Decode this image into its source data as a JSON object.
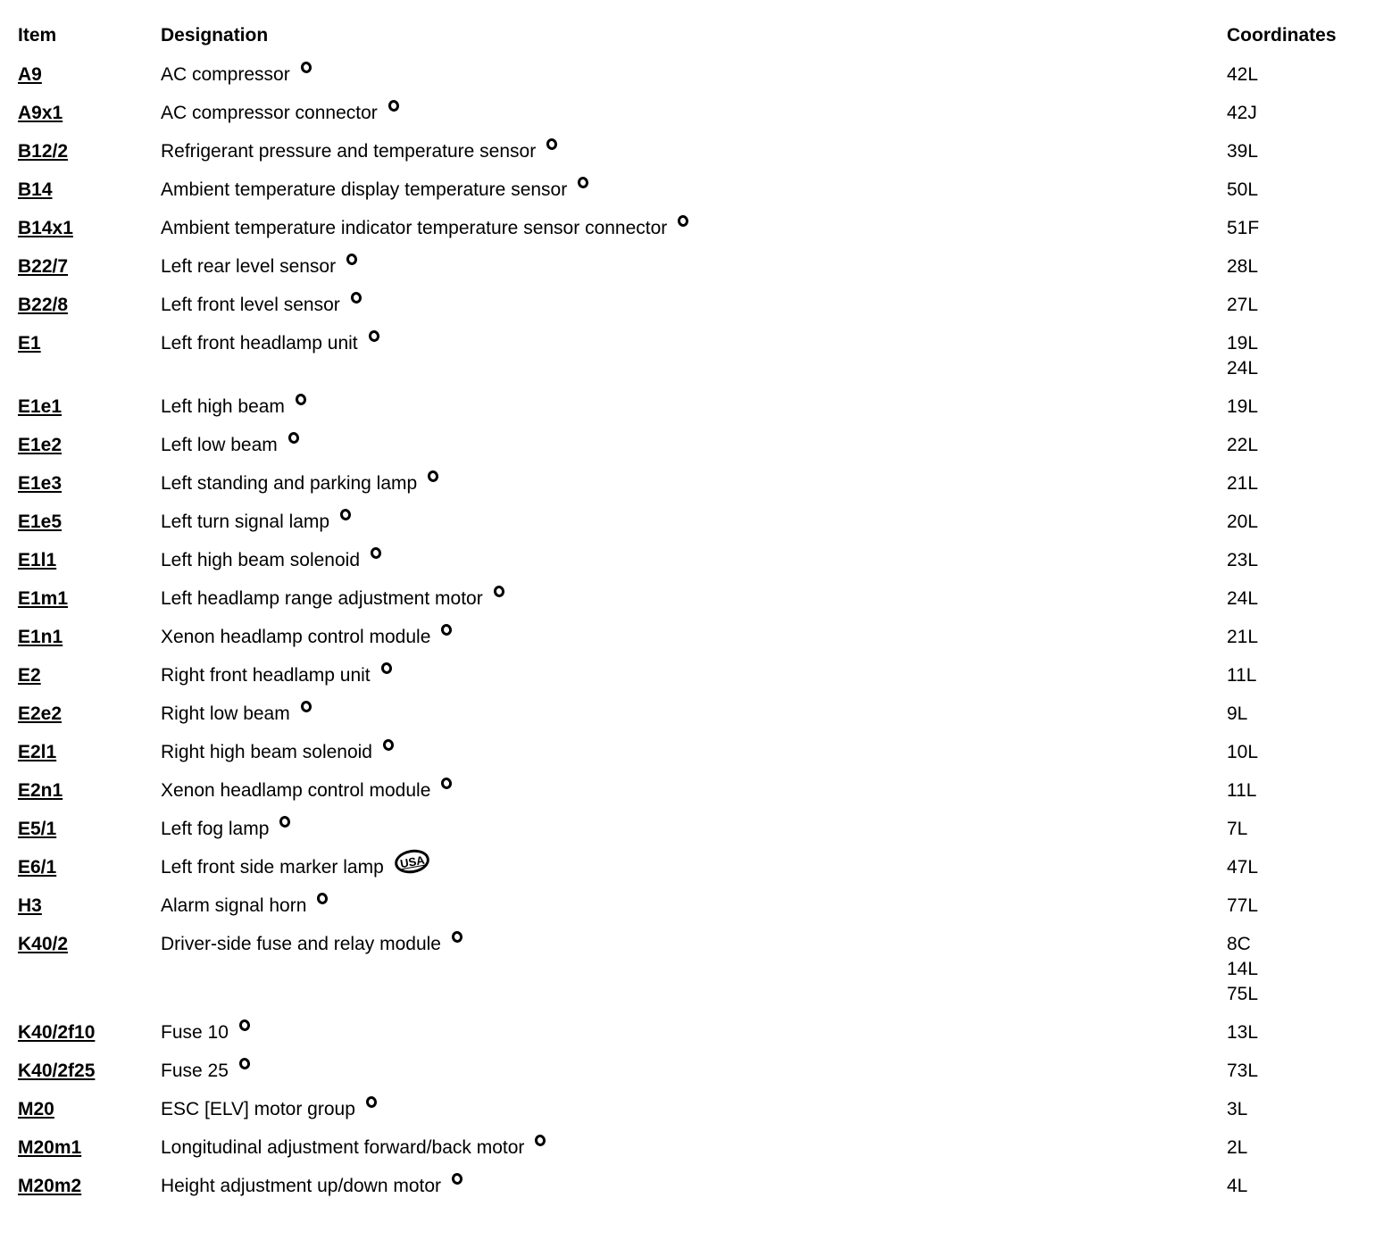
{
  "colors": {
    "text": "#000000",
    "background": "#ffffff"
  },
  "table": {
    "headers": {
      "item": "Item",
      "designation": "Designation",
      "coordinates": "Coordinates"
    },
    "rows": [
      {
        "item": "A9",
        "designation": "AC compressor",
        "coordinates": [
          "42L"
        ]
      },
      {
        "item": "A9x1",
        "designation": "AC compressor connector",
        "coordinates": [
          "42J"
        ]
      },
      {
        "item": "B12/2",
        "designation": "Refrigerant pressure and temperature sensor",
        "coordinates": [
          "39L"
        ]
      },
      {
        "item": "B14",
        "designation": "Ambient temperature display temperature sensor",
        "coordinates": [
          "50L"
        ]
      },
      {
        "item": "B14x1",
        "designation": "Ambient temperature indicator temperature sensor connector",
        "coordinates": [
          "51F"
        ]
      },
      {
        "item": "B22/7",
        "designation": "Left rear level sensor",
        "coordinates": [
          "28L"
        ]
      },
      {
        "item": "B22/8",
        "designation": "Left front level sensor",
        "coordinates": [
          "27L"
        ]
      },
      {
        "item": "E1",
        "designation": "Left front headlamp unit",
        "coordinates": [
          "19L",
          "24L"
        ]
      },
      {
        "item": "E1e1",
        "designation": "Left high beam",
        "coordinates": [
          "19L"
        ]
      },
      {
        "item": "E1e2",
        "designation": "Left low beam",
        "coordinates": [
          "22L"
        ]
      },
      {
        "item": "E1e3",
        "designation": "Left standing and parking lamp",
        "coordinates": [
          "21L"
        ]
      },
      {
        "item": "E1e5",
        "designation": "Left turn signal lamp",
        "coordinates": [
          "20L"
        ]
      },
      {
        "item": "E1l1",
        "designation": "Left high beam solenoid",
        "coordinates": [
          "23L"
        ]
      },
      {
        "item": "E1m1",
        "designation": "Left headlamp range adjustment motor",
        "coordinates": [
          "24L"
        ]
      },
      {
        "item": "E1n1",
        "designation": "Xenon headlamp control module",
        "coordinates": [
          "21L"
        ]
      },
      {
        "item": "E2",
        "designation": "Right front headlamp unit",
        "coordinates": [
          "11L"
        ]
      },
      {
        "item": "E2e2",
        "designation": "Right low beam",
        "coordinates": [
          "9L"
        ]
      },
      {
        "item": "E2l1",
        "designation": "Right high beam solenoid",
        "coordinates": [
          "10L"
        ]
      },
      {
        "item": "E2n1",
        "designation": "Xenon headlamp control module",
        "coordinates": [
          "11L"
        ]
      },
      {
        "item": "E5/1",
        "designation": "Left fog lamp",
        "coordinates": [
          "7L"
        ]
      },
      {
        "item": "E6/1",
        "designation": "Left front side marker lamp",
        "icon": {
          "name": "usa-marker-icon",
          "label": "USA"
        },
        "coordinates": [
          "47L"
        ]
      },
      {
        "item": "H3",
        "designation": "Alarm signal horn",
        "coordinates": [
          "77L"
        ]
      },
      {
        "item": "K40/2",
        "designation": "Driver-side fuse and relay module",
        "coordinates": [
          "8C",
          "14L",
          "75L"
        ]
      },
      {
        "item": "K40/2f10",
        "designation": "Fuse 10",
        "coordinates": [
          "13L"
        ]
      },
      {
        "item": "K40/2f25",
        "designation": "Fuse 25",
        "coordinates": [
          "73L"
        ]
      },
      {
        "item": "M20",
        "designation": "ESC [ELV] motor group",
        "coordinates": [
          "3L"
        ]
      },
      {
        "item": "M20m1",
        "designation": "Longitudinal adjustment forward/back motor",
        "coordinates": [
          "2L"
        ]
      },
      {
        "item": "M20m2",
        "designation": "Height adjustment up/down motor",
        "coordinates": [
          "4L"
        ]
      }
    ]
  }
}
